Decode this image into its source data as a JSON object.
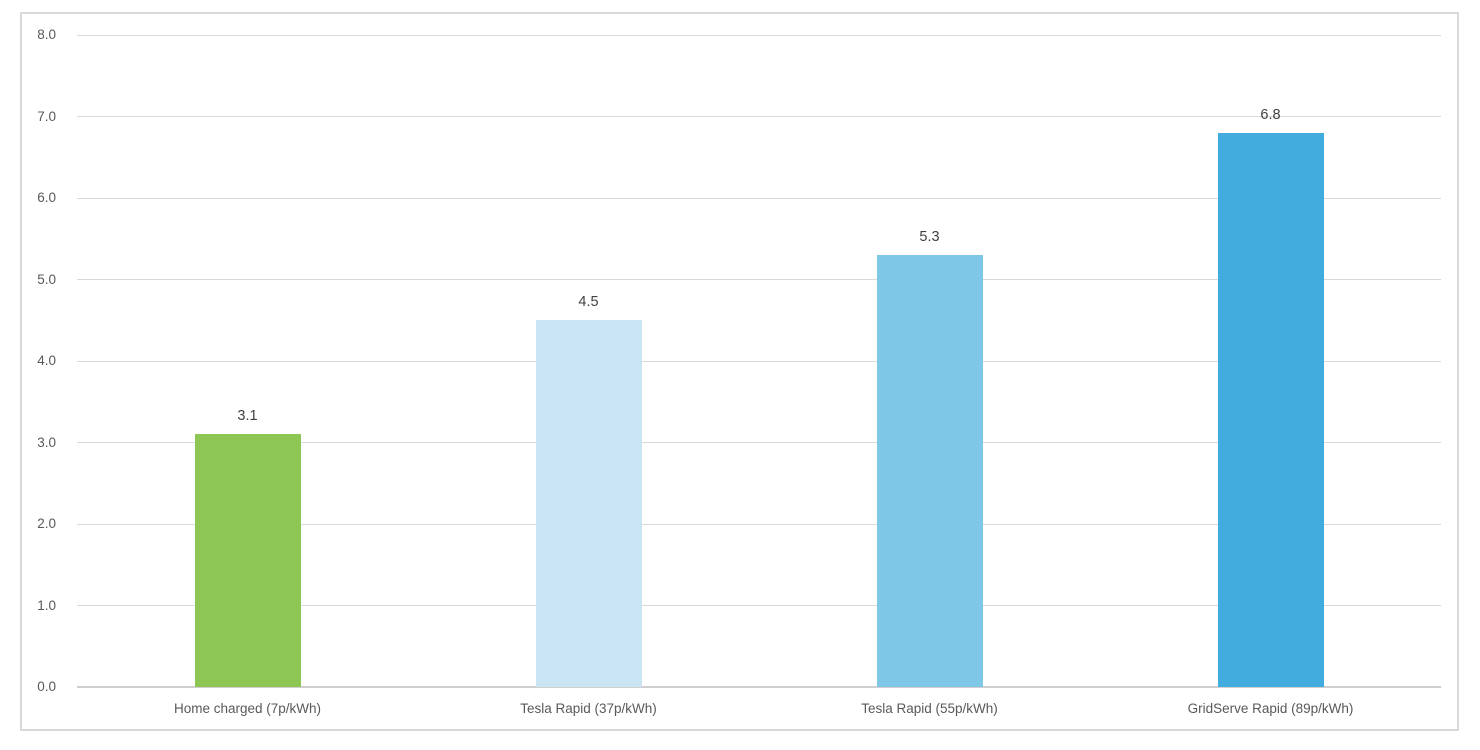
{
  "chart_data": {
    "type": "bar",
    "title": "",
    "xlabel": "",
    "ylabel": "",
    "categories": [
      "Home charged (7p/kWh)",
      "Tesla Rapid (37p/kWh)",
      "Tesla Rapid (55p/kWh)",
      "GridServe Rapid (89p/kWh)"
    ],
    "values": [
      3.1,
      4.5,
      5.3,
      6.8
    ],
    "data_labels": [
      "3.1",
      "4.5",
      "5.3",
      "6.8"
    ],
    "bar_colors": [
      "#8DC653",
      "#C9E5F3",
      "#7FC7E7",
      "#41ACDD"
    ],
    "ylim": [
      0,
      8
    ],
    "ytick_step": 1,
    "ytick_labels": [
      "0.0",
      "1.0",
      "2.0",
      "3.0",
      "4.0",
      "5.0",
      "6.0",
      "7.0",
      "8.0"
    ],
    "grid": "horizontal",
    "legend": "none",
    "colors": {
      "background": "#FFFFFF",
      "frame_border": "#D9D9D9",
      "gridline": "#D9D9D9",
      "axis_line": "#D0CECE",
      "tick_text": "#595959",
      "category_text": "#595959",
      "data_label_text": "#404040"
    }
  }
}
